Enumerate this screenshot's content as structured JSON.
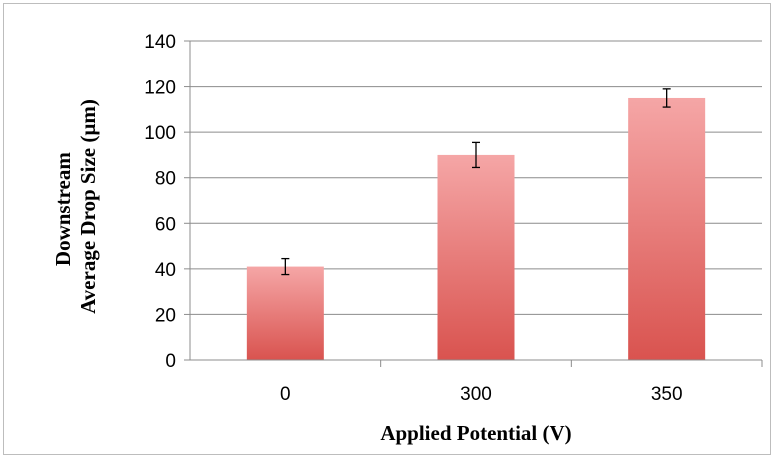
{
  "chart_data": {
    "type": "bar",
    "categories": [
      "0",
      "300",
      "350"
    ],
    "series": [
      {
        "values": [
          41,
          90,
          115
        ],
        "error": [
          3.5,
          5.5,
          4
        ]
      }
    ],
    "xlabel": "Applied Potential (V)",
    "ylabel_lines": [
      "Downstream",
      "Average Drop Size  (µm)"
    ],
    "ylim": [
      0,
      140
    ],
    "yticks": [
      "0",
      "20",
      "40",
      "60",
      "80",
      "100",
      "120",
      "140"
    ],
    "grid": true,
    "legend": "none",
    "colors": {
      "bar_top": "#f5a6a6",
      "bar_bottom": "#d9534f",
      "grid": "#8c8c8c",
      "axis": "#8c8c8c"
    }
  }
}
